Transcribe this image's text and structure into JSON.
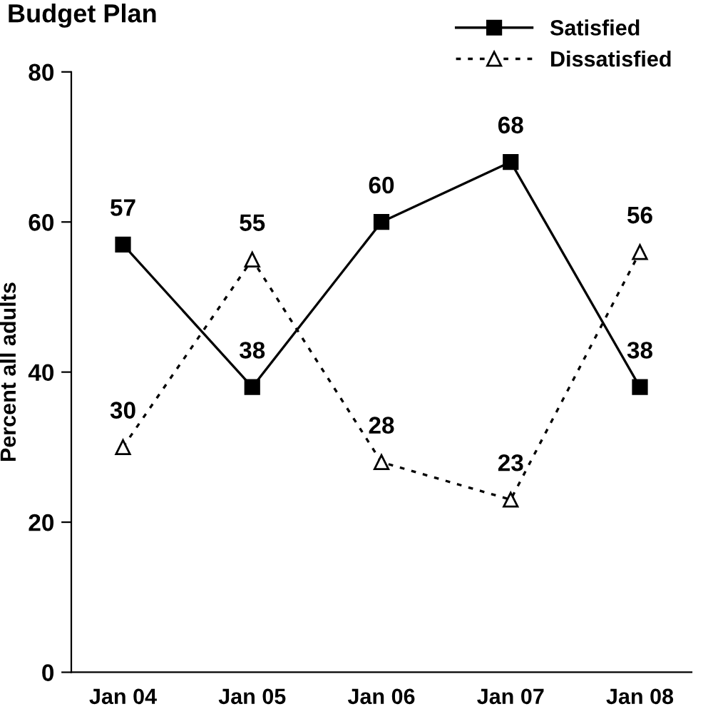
{
  "chart_data": {
    "type": "line",
    "title": "Budget Plan",
    "ylabel": "Percent all adults",
    "categories": [
      "Jan 04",
      "Jan 05",
      "Jan 06",
      "Jan 07",
      "Jan 08"
    ],
    "series": [
      {
        "name": "Satisfied",
        "color": "#000000",
        "values": [
          57,
          38,
          60,
          68,
          38
        ],
        "marker": "square",
        "line_style": "solid"
      },
      {
        "name": "Dissatisfied",
        "color": "#000000",
        "values": [
          30,
          55,
          28,
          23,
          56
        ],
        "marker": "triangle",
        "line_style": "dotted"
      }
    ],
    "ylim": [
      0,
      80
    ],
    "yticks": [
      0,
      20,
      40,
      60,
      80
    ],
    "grid": false,
    "legend": "top right",
    "data_labels": true
  }
}
